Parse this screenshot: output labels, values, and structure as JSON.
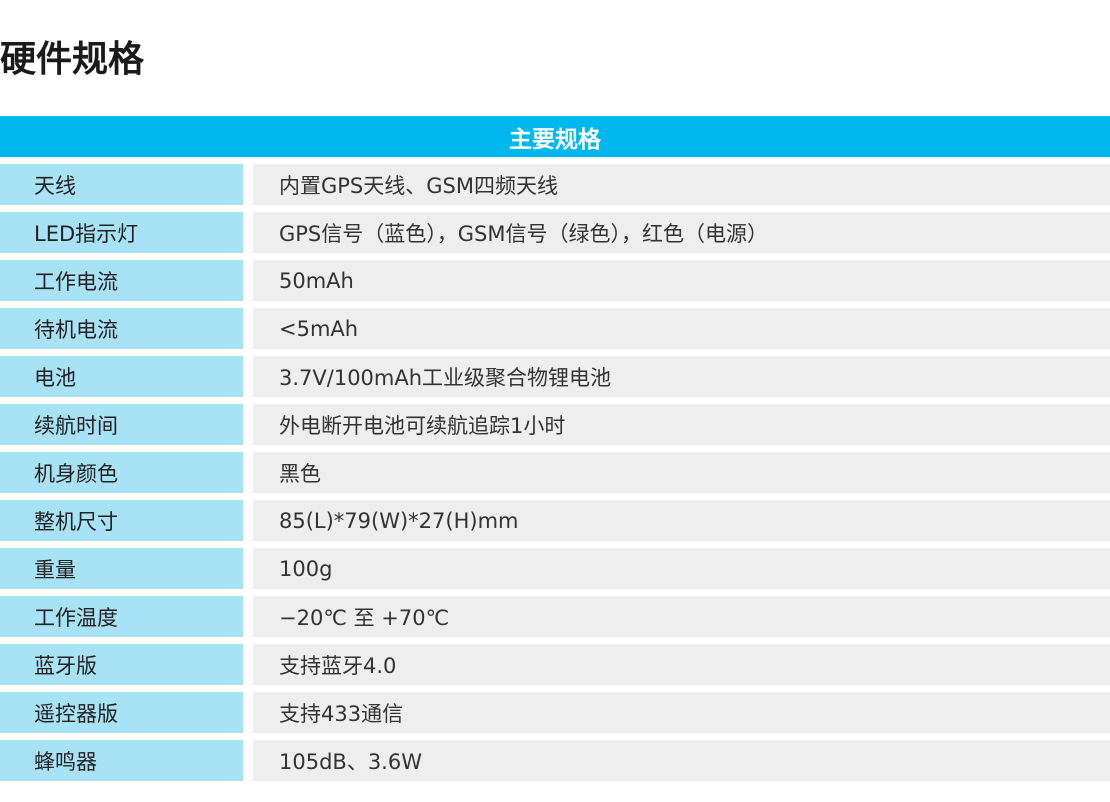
{
  "title": "硬件规格",
  "table": {
    "header": "主要规格",
    "rows": [
      {
        "label": "天线",
        "value": "内置GPS天线、GSM四频天线"
      },
      {
        "label": "LED指示灯",
        "value": "GPS信号（蓝色），GSM信号（绿色），红色（电源）"
      },
      {
        "label": "工作电流",
        "value": "50mAh"
      },
      {
        "label": "待机电流",
        "value": "<5mAh"
      },
      {
        "label": "电池",
        "value": "3.7V/100mAh工业级聚合物锂电池"
      },
      {
        "label": "续航时间",
        "value": "外电断开电池可续航追踪1小时"
      },
      {
        "label": "机身颜色",
        "value": "黑色"
      },
      {
        "label": "整机尺寸",
        "value": "85(L)*79(W)*27(H)mm"
      },
      {
        "label": "重量",
        "value": "100g"
      },
      {
        "label": "工作温度",
        "value": "−20℃ 至 +70℃"
      },
      {
        "label": "蓝牙版",
        "value": "支持蓝牙4.0"
      },
      {
        "label": "遥控器版",
        "value": "支持433通信"
      },
      {
        "label": "蜂鸣器",
        "value": "105dB、3.6W"
      }
    ]
  },
  "colors": {
    "header_bg": "#00b7ee",
    "label_bg": "#a8e2f7",
    "value_bg": "#eeeeee"
  }
}
